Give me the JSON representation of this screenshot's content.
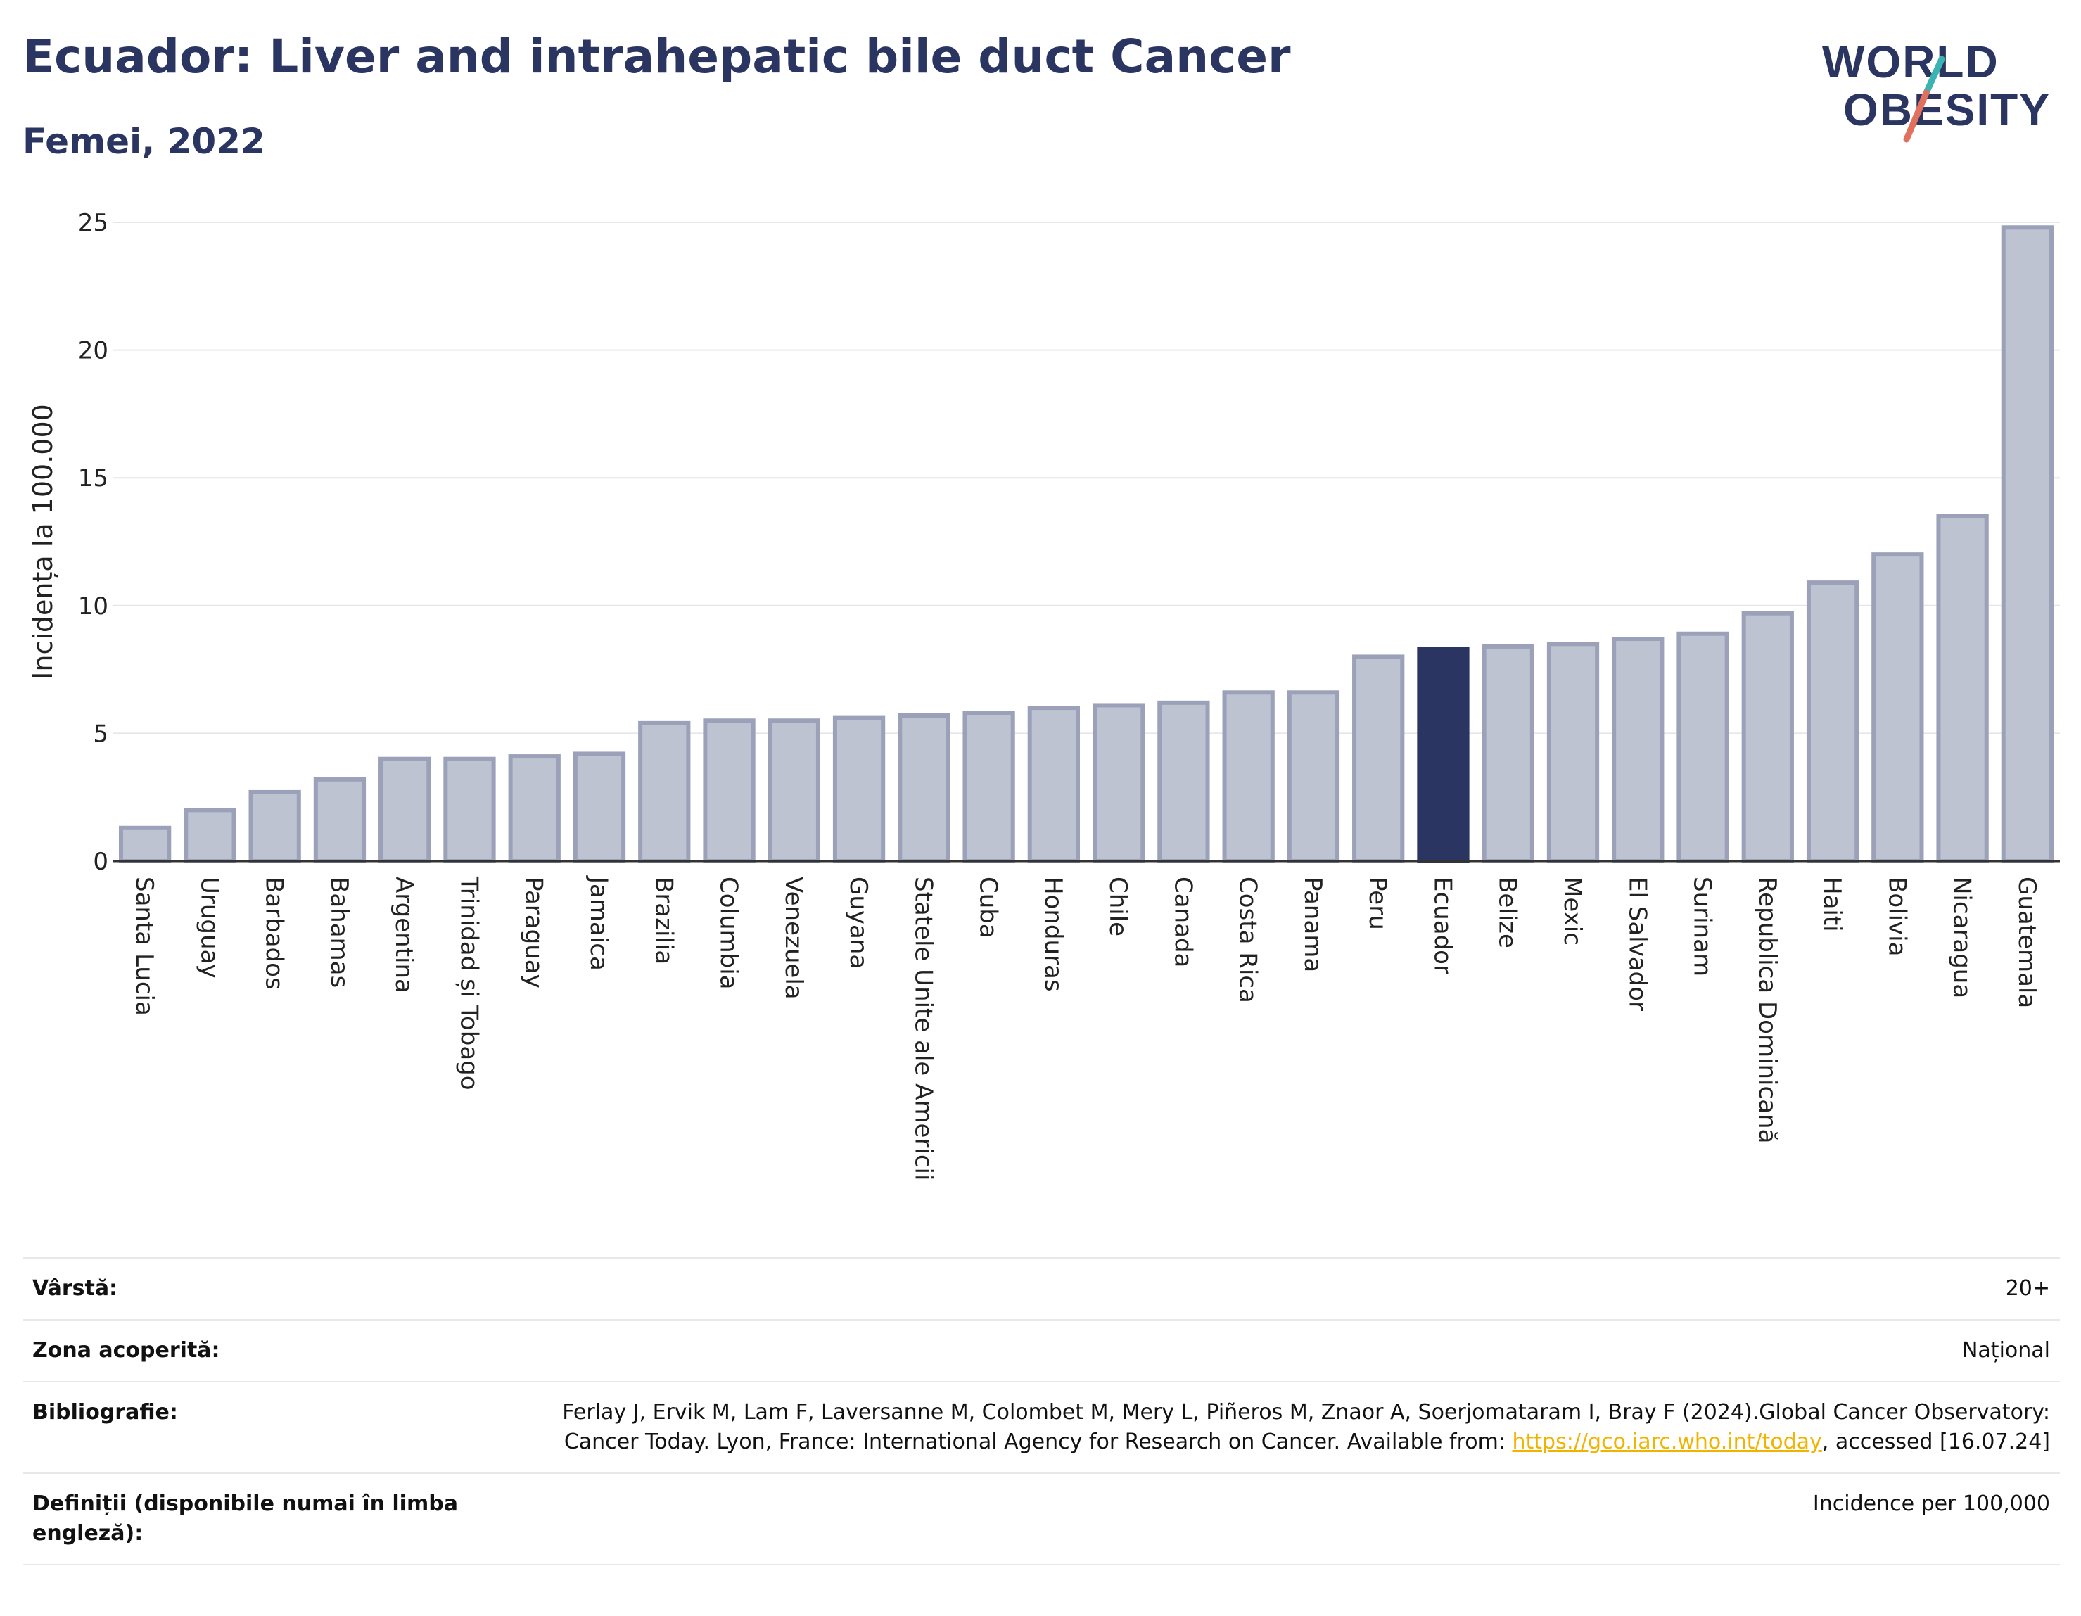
{
  "header": {
    "title": "Ecuador: Liver and intrahepatic bile duct Cancer",
    "subtitle": "Femei, 2022"
  },
  "logo": {
    "line1": "WORLD",
    "line2": "OBESITY"
  },
  "colors": {
    "bar": "#bec3d1",
    "bar_border": "#9aa1b8",
    "highlight": "#2b3561",
    "grid": "#e6e6ea",
    "axis": "#333333",
    "logo_teal": "#3ab3b2",
    "logo_coral": "#e2705e"
  },
  "chart_data": {
    "type": "bar",
    "ylabel": "Incidența la 100.000",
    "ylim": [
      0,
      25
    ],
    "yticks": [
      "0",
      "5",
      "10",
      "15",
      "20",
      "25"
    ],
    "grid": true,
    "highlight": "Ecuador",
    "categories": [
      "Santa Lucia",
      "Uruguay",
      "Barbados",
      "Bahamas",
      "Argentina",
      "Trinidad și Tobago",
      "Paraguay",
      "Jamaica",
      "Brazilia",
      "Columbia",
      "Venezuela",
      "Guyana",
      "Statele Unite ale Americii",
      "Cuba",
      "Honduras",
      "Chile",
      "Canada",
      "Costa Rica",
      "Panama",
      "Peru",
      "Ecuador",
      "Belize",
      "Mexic",
      "El Salvador",
      "Surinam",
      "Republica Dominicană",
      "Haiti",
      "Bolivia",
      "Nicaragua",
      "Guatemala"
    ],
    "values": [
      1.3,
      2.0,
      2.7,
      3.2,
      4.0,
      4.0,
      4.1,
      4.2,
      5.4,
      5.5,
      5.5,
      5.6,
      5.7,
      5.8,
      6.0,
      6.1,
      6.2,
      6.6,
      6.6,
      8.0,
      8.3,
      8.4,
      8.5,
      8.7,
      8.9,
      9.7,
      10.9,
      12.0,
      13.5,
      24.8
    ]
  },
  "meta": [
    {
      "label": "Vârstă:",
      "value": "20+"
    },
    {
      "label": "Zona acoperită:",
      "value": "Național"
    },
    {
      "label": "Bibliografie:",
      "value_pre": "Ferlay J, Ervik M, Lam F, Laversanne M, Colombet M, Mery L, Piñeros M, Znaor A, Soerjomataram I, Bray F (2024).Global Cancer Observatory: Cancer Today. Lyon, France: International Agency for Research on Cancer. Available from: ",
      "link": "https://gco.iarc.who.int/today",
      "value_post": ", accessed [16.07.24]"
    },
    {
      "label": "Definiții (disponibile numai în limba engleză):",
      "value": "Incidence per 100,000"
    }
  ]
}
